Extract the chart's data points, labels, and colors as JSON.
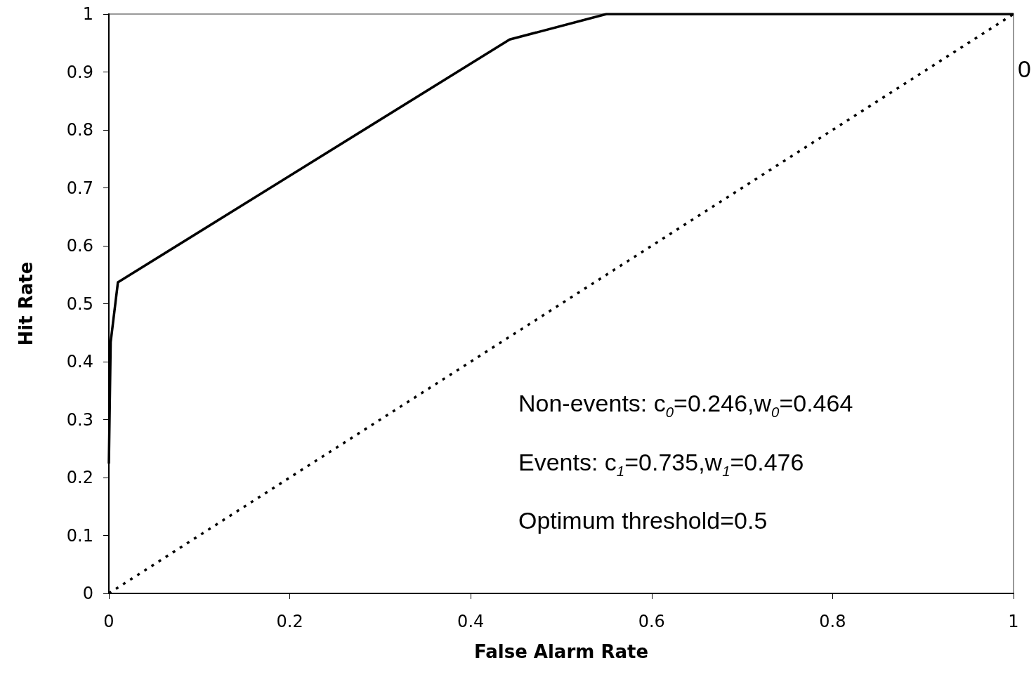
{
  "chart_data": {
    "type": "line",
    "xlabel": "False Alarm Rate",
    "ylabel": "Hit Rate",
    "xlim": [
      0,
      1
    ],
    "xticks": [
      0,
      0.2,
      0.4,
      0.6,
      0.8,
      1
    ],
    "ylim": [
      0,
      1
    ],
    "yticks": [
      0,
      0.1,
      0.2,
      0.3,
      0.4,
      0.5,
      0.6,
      0.7,
      0.8,
      0.9,
      1
    ],
    "grid": false,
    "marker": "none",
    "series": [
      {
        "color": "#000000",
        "line_style": "solid",
        "x": [
          0,
          0.002,
          0.01,
          0.443,
          0.55,
          1
        ],
        "values": [
          0.224,
          0.434,
          0.537,
          0.956,
          1,
          1
        ]
      },
      {
        "color": "#000000",
        "line_style": "dotted",
        "x": [
          0,
          1
        ],
        "values": [
          0,
          1
        ]
      }
    ],
    "annotations": [
      "Non-events: c$_{0}$=0.246,w$_{0}$=0.464",
      "Events: c$_{1}$=0.735,w$_{1}$=0.476",
      "Optimum threshold=0.5",
      "0"
    ]
  }
}
